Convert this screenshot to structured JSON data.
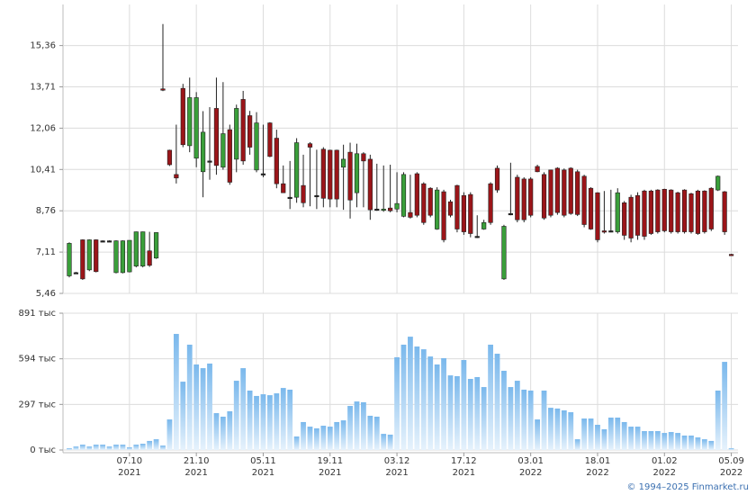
{
  "chart_data": [
    {
      "type": "candlestick",
      "xlim": [
        -0.94,
        100
      ],
      "ylim": [
        5.46,
        17.0
      ],
      "yticks": [
        {
          "value": 5.46,
          "label": "5,46"
        },
        {
          "value": 7.11,
          "label": "7,11"
        },
        {
          "value": 8.76,
          "label": "8,76"
        },
        {
          "value": 10.41,
          "label": "10,41"
        },
        {
          "value": 12.06,
          "label": "12,06"
        },
        {
          "value": 13.71,
          "label": "13,71"
        },
        {
          "value": 15.36,
          "label": "15,36"
        }
      ],
      "up_color": "#3a9f3a",
      "down_color": "#9b1519",
      "flat_color": "#222222",
      "grid": true,
      "open": [
        6.16,
        6.29,
        7.6,
        6.4,
        7.6,
        7.56,
        7.56,
        6.29,
        6.29,
        6.32,
        6.55,
        6.55,
        7.16,
        6.87,
        13.63,
        11.18,
        10.21,
        13.65,
        11.36,
        10.86,
        10.32,
        10.75,
        12.85,
        10.5,
        12.0,
        10.82,
        13.21,
        12.56,
        10.39,
        10.24,
        12.27,
        11.66,
        9.84,
        9.3,
        9.3,
        9.77,
        11.44,
        9.37,
        11.22,
        11.18,
        11.18,
        10.5,
        11.1,
        9.48,
        11.04,
        10.82,
        8.83,
        8.8,
        8.87,
        8.83,
        8.54,
        8.69,
        10.24,
        9.84,
        9.66,
        8.03,
        9.52,
        9.12,
        9.77,
        9.37,
        9.41,
        7.74,
        8.03,
        9.84,
        10.46,
        6.04,
        8.65,
        10.1,
        10.03,
        10.03,
        10.53,
        10.21,
        10.39,
        10.46,
        10.39,
        10.46,
        10.32,
        10.14,
        9.66,
        9.48,
        7.96,
        7.96,
        7.92,
        9.08,
        9.3,
        9.37,
        9.55,
        9.55,
        9.59,
        9.62,
        9.59,
        9.48,
        9.59,
        9.44,
        9.55,
        9.55,
        9.66,
        9.59,
        9.52,
        7.02
      ],
      "high": [
        7.5,
        6.32,
        7.62,
        7.62,
        7.62,
        7.58,
        7.58,
        7.58,
        7.58,
        7.58,
        7.93,
        7.93,
        7.92,
        7.9,
        16.22,
        11.2,
        12.2,
        13.83,
        14.08,
        13.5,
        12.74,
        12.9,
        14.08,
        13.9,
        12.2,
        13.0,
        13.55,
        12.75,
        12.7,
        12.2,
        12.3,
        12.0,
        10.57,
        10.75,
        11.66,
        11.0,
        11.5,
        11.2,
        11.3,
        11.2,
        11.2,
        11.4,
        11.48,
        11.44,
        11.1,
        11.0,
        10.64,
        10.57,
        10.6,
        10.3,
        10.3,
        10.2,
        10.3,
        9.9,
        9.7,
        9.7,
        9.6,
        9.2,
        9.8,
        9.5,
        9.5,
        8.58,
        8.4,
        9.9,
        10.57,
        8.2,
        10.68,
        10.2,
        10.1,
        10.1,
        10.6,
        10.3,
        10.4,
        10.5,
        10.45,
        10.5,
        10.4,
        10.2,
        9.7,
        9.5,
        9.55,
        9.6,
        9.66,
        9.15,
        9.4,
        9.5,
        9.6,
        9.6,
        9.62,
        9.64,
        9.62,
        9.52,
        9.62,
        9.48,
        9.6,
        9.58,
        9.7,
        10.17,
        9.55,
        7.04
      ],
      "low": [
        6.1,
        6.26,
        6.0,
        6.35,
        6.3,
        7.54,
        7.54,
        6.26,
        6.26,
        6.3,
        6.5,
        6.5,
        6.52,
        6.84,
        13.54,
        10.55,
        9.85,
        11.3,
        11.1,
        10.5,
        9.3,
        10.0,
        10.2,
        10.4,
        9.8,
        10.3,
        10.6,
        11.0,
        10.3,
        10.1,
        10.9,
        9.66,
        9.48,
        8.83,
        9.08,
        8.9,
        8.94,
        8.83,
        8.9,
        8.9,
        8.9,
        8.8,
        8.45,
        8.9,
        8.9,
        8.4,
        8.76,
        8.72,
        8.7,
        8.7,
        8.5,
        8.45,
        8.5,
        8.2,
        8.5,
        8.0,
        7.5,
        8.5,
        7.9,
        7.8,
        7.7,
        7.67,
        8.0,
        8.2,
        9.48,
        6.0,
        8.58,
        8.3,
        8.3,
        8.5,
        10.3,
        8.4,
        8.5,
        8.6,
        8.5,
        8.6,
        8.55,
        8.1,
        8.0,
        7.5,
        7.85,
        7.9,
        7.85,
        7.6,
        7.5,
        7.6,
        7.6,
        7.8,
        7.85,
        7.9,
        7.85,
        7.85,
        7.85,
        7.85,
        7.8,
        7.85,
        7.95,
        9.55,
        7.8,
        6.97
      ],
      "close": [
        7.46,
        6.29,
        6.04,
        7.6,
        6.33,
        7.56,
        7.56,
        7.56,
        7.56,
        7.58,
        7.92,
        7.92,
        6.58,
        7.89,
        13.6,
        10.6,
        10.07,
        11.4,
        13.28,
        13.28,
        11.9,
        10.75,
        10.57,
        11.84,
        9.9,
        12.85,
        10.75,
        11.3,
        12.27,
        10.24,
        10.93,
        9.84,
        9.48,
        9.3,
        11.48,
        9.08,
        11.3,
        9.37,
        9.26,
        9.23,
        9.23,
        10.82,
        9.19,
        11.04,
        10.75,
        8.8,
        8.83,
        8.83,
        8.76,
        9.05,
        10.21,
        8.5,
        8.58,
        8.29,
        8.58,
        9.59,
        7.6,
        8.58,
        8.03,
        7.92,
        7.85,
        7.74,
        8.29,
        8.29,
        9.59,
        8.14,
        8.65,
        8.4,
        8.4,
        8.58,
        10.32,
        8.47,
        8.58,
        8.69,
        8.58,
        8.65,
        8.61,
        8.21,
        8.03,
        7.6,
        7.92,
        7.96,
        9.48,
        7.78,
        7.67,
        7.78,
        7.74,
        7.85,
        7.92,
        7.96,
        7.92,
        7.92,
        7.92,
        7.92,
        7.85,
        7.92,
        8.03,
        10.14,
        7.92,
        6.99
      ]
    },
    {
      "type": "bar",
      "xlim": [
        -0.94,
        100
      ],
      "ylim": [
        0,
        891
      ],
      "yticks": [
        {
          "value": 0,
          "label": "0 тыс"
        },
        {
          "value": 297,
          "label": "297 тыс"
        },
        {
          "value": 594,
          "label": "594 тыс"
        },
        {
          "value": 891,
          "label": "891 тыс"
        }
      ],
      "xticks": [
        {
          "value": 9,
          "label": "07.10",
          "year": "2021"
        },
        {
          "value": 19,
          "label": "21.10",
          "year": "2021"
        },
        {
          "value": 29,
          "label": "05.11",
          "year": "2021"
        },
        {
          "value": 39,
          "label": "19.11",
          "year": "2021"
        },
        {
          "value": 49,
          "label": "03.12",
          "year": "2021"
        },
        {
          "value": 59,
          "label": "17.12",
          "year": "2021"
        },
        {
          "value": 69,
          "label": "03.01",
          "year": "2022"
        },
        {
          "value": 79,
          "label": "18.01",
          "year": "2022"
        },
        {
          "value": 89,
          "label": "01.02",
          "year": "2022"
        },
        {
          "value": 99,
          "label": "05.09",
          "year": "2022"
        }
      ],
      "color": "#7ab8ec",
      "grid": true,
      "values": [
        12,
        23,
        35,
        23,
        35,
        35,
        23,
        35,
        35,
        18,
        35,
        41,
        59,
        70,
        29,
        199,
        756,
        445,
        686,
        557,
        533,
        563,
        240,
        217,
        252,
        451,
        533,
        387,
        352,
        363,
        357,
        369,
        404,
        393,
        88,
        182,
        152,
        141,
        158,
        152,
        182,
        193,
        287,
        316,
        311,
        223,
        217,
        105,
        100,
        604,
        686,
        738,
        674,
        656,
        609,
        557,
        598,
        486,
        481,
        586,
        463,
        475,
        410,
        686,
        627,
        516,
        410,
        451,
        393,
        387,
        199,
        387,
        275,
        270,
        258,
        246,
        70,
        205,
        205,
        164,
        135,
        211,
        211,
        182,
        152,
        152,
        123,
        123,
        123,
        111,
        117,
        111,
        94,
        94,
        82,
        70,
        59,
        387,
        574,
        12
      ]
    }
  ],
  "footer": "© 1994–2025 Finmarket.ru"
}
